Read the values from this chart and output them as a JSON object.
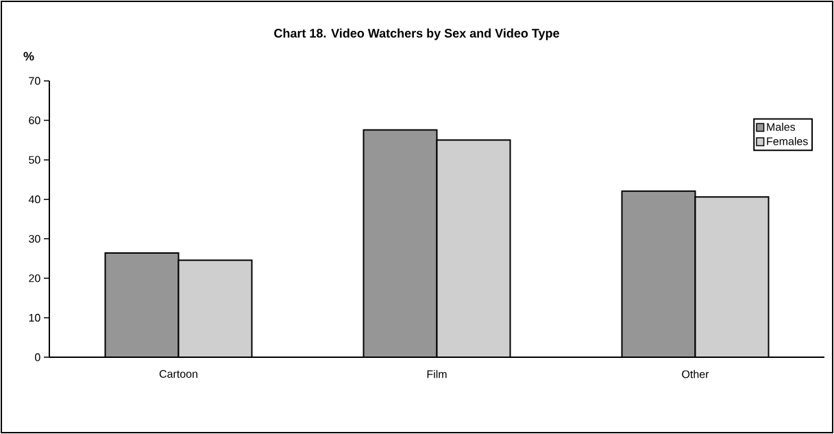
{
  "chart_data": {
    "type": "bar",
    "title": "Chart 18.  Video Watchers by Sex and Video Type",
    "ylabel": "%",
    "categories": [
      "Cartoon",
      "Film",
      "Other"
    ],
    "series": [
      {
        "name": "Males",
        "color": "#969696",
        "values": [
          26.4,
          57.6,
          42.1
        ]
      },
      {
        "name": "Females",
        "color": "#cfcfcf",
        "values": [
          24.6,
          55.0,
          40.6
        ]
      }
    ],
    "ylim": [
      0,
      70
    ],
    "yticks": [
      0,
      10,
      20,
      30,
      40,
      50,
      60,
      70
    ],
    "grid": false,
    "legend": "top right"
  }
}
